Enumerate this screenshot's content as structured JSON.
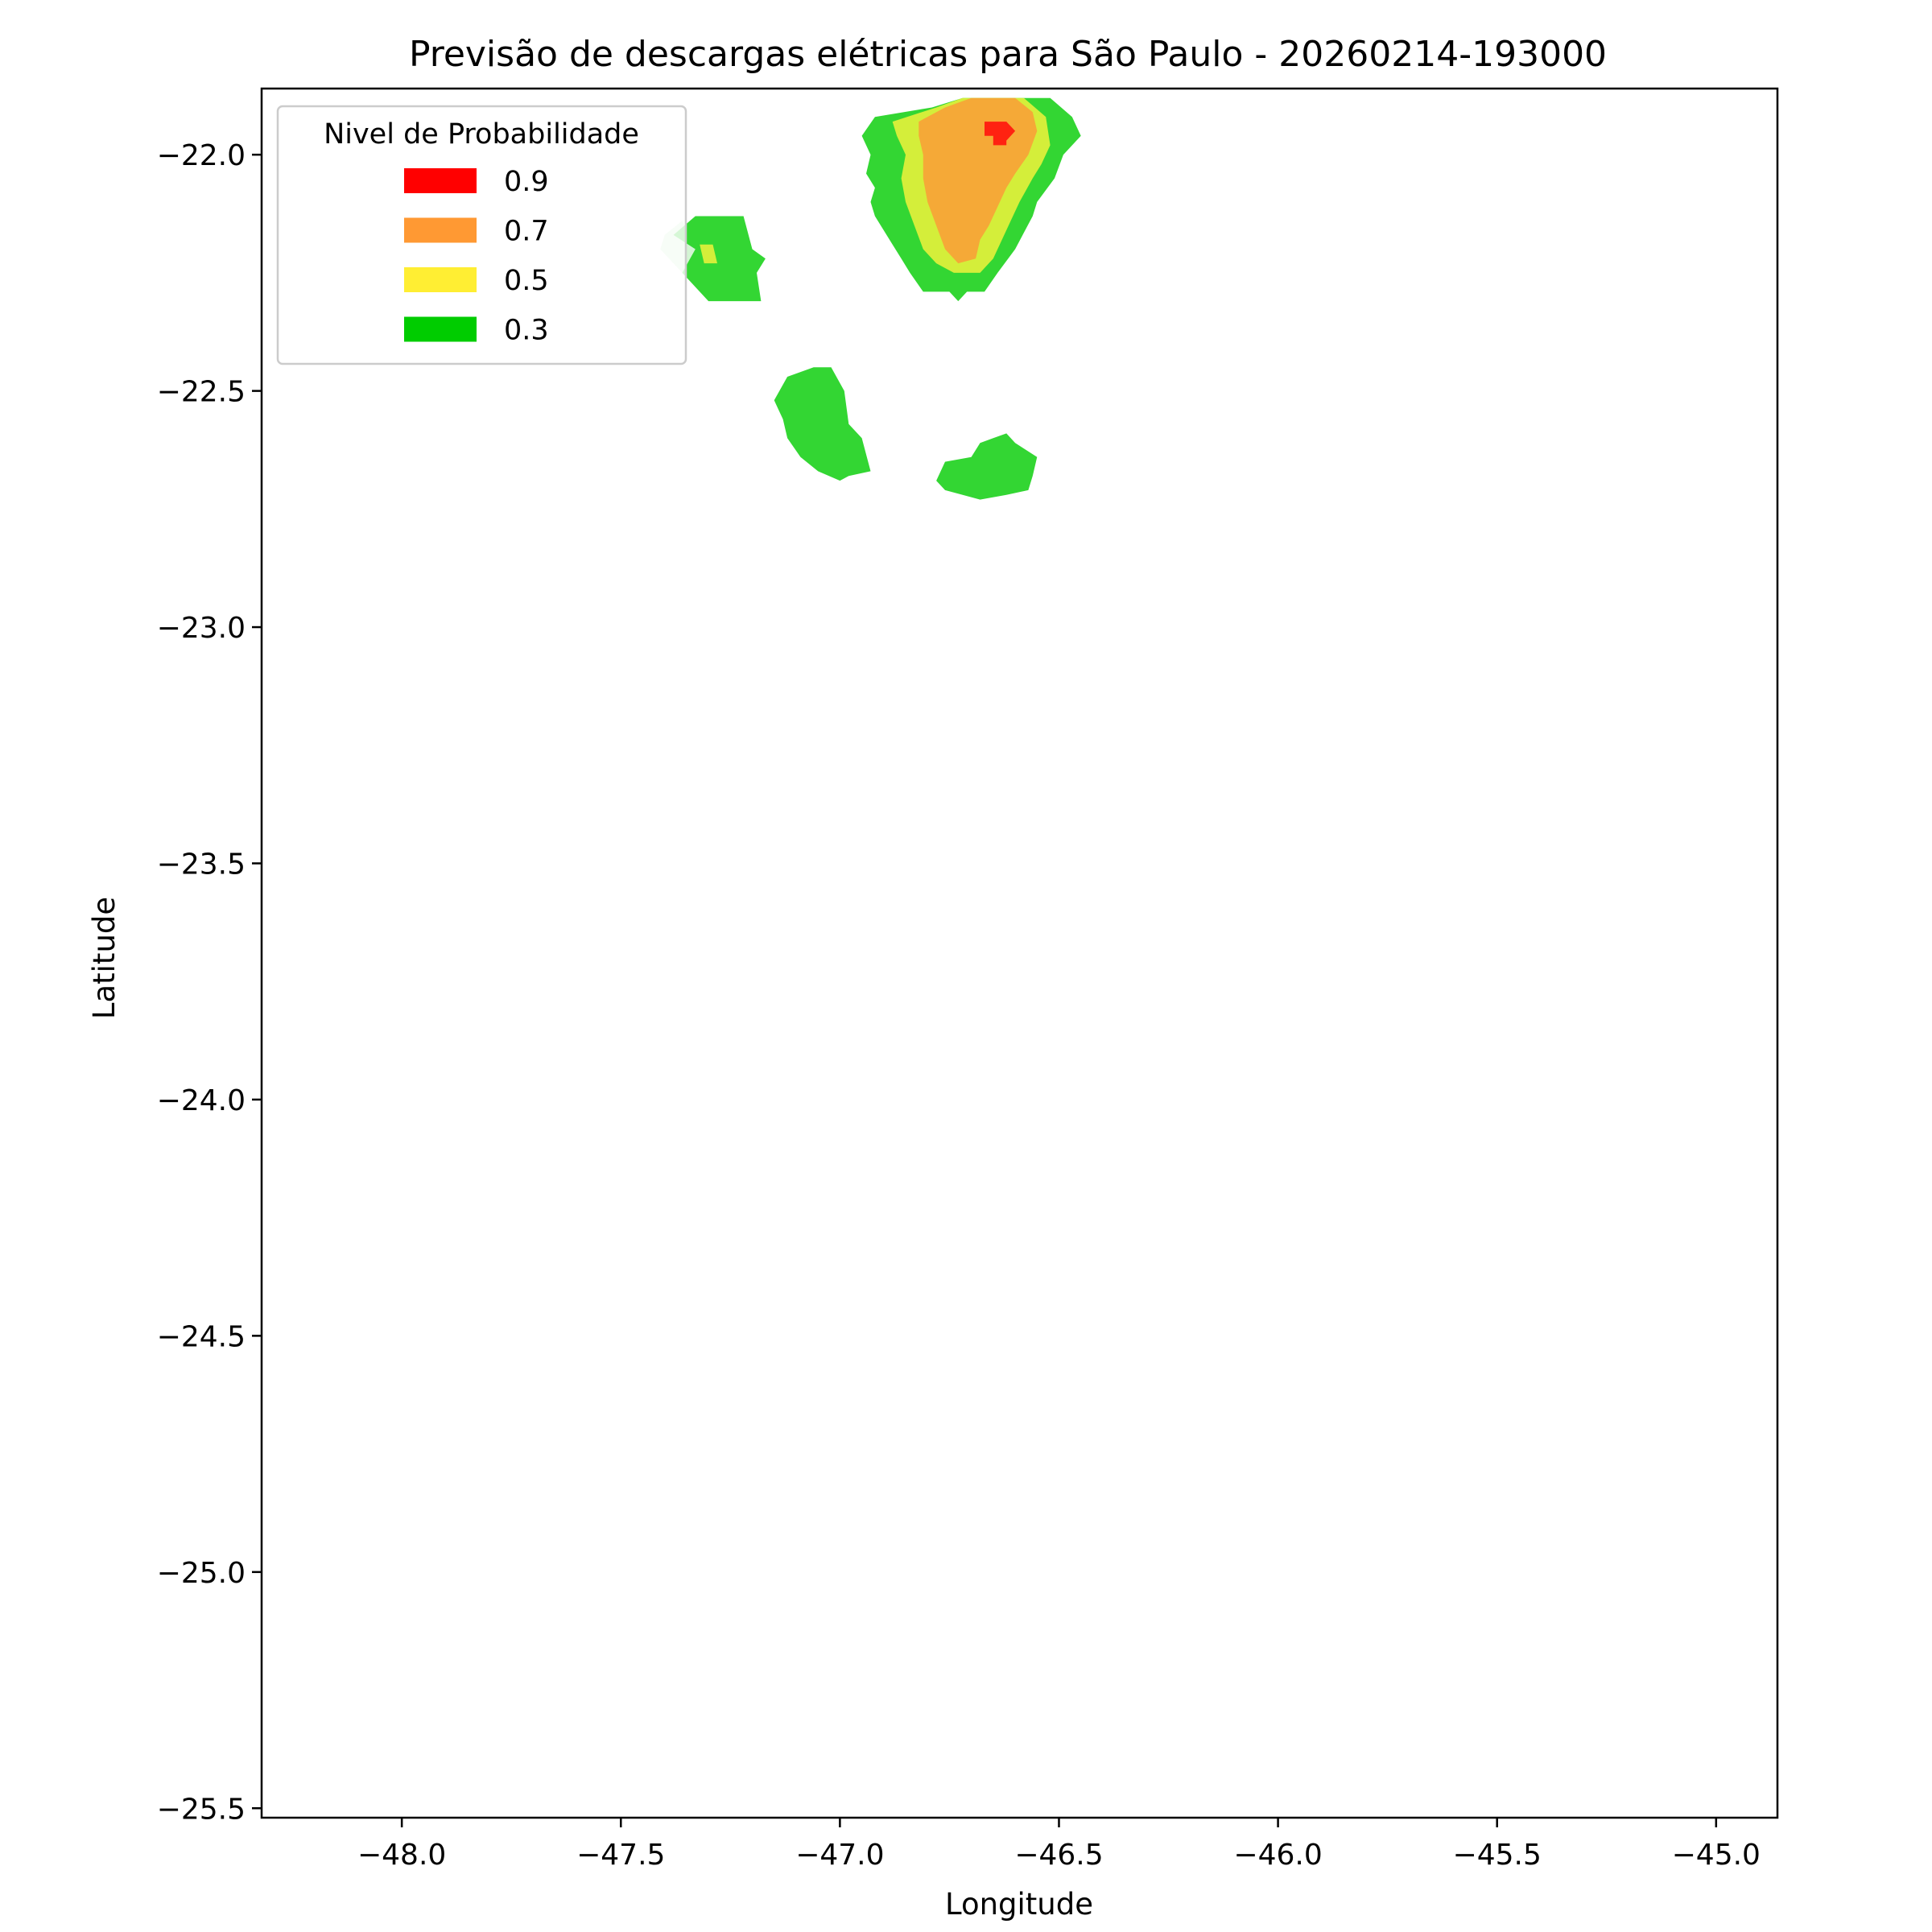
{
  "chart_data": {
    "type": "contourf",
    "title": "Previsão de descargas elétricas para São Paulo - 20260214-193000",
    "xlabel": "Longitude",
    "ylabel": "Latitude",
    "xlim": [
      -48.32,
      -44.86
    ],
    "ylim": [
      -25.52,
      -21.86
    ],
    "x_ticks": [
      {
        "value": -48.0,
        "label": "−48.0"
      },
      {
        "value": -47.5,
        "label": "−47.5"
      },
      {
        "value": -47.0,
        "label": "−47.0"
      },
      {
        "value": -46.5,
        "label": "−46.5"
      },
      {
        "value": -46.0,
        "label": "−46.0"
      },
      {
        "value": -45.5,
        "label": "−45.5"
      },
      {
        "value": -45.0,
        "label": "−45.0"
      }
    ],
    "y_ticks": [
      {
        "value": -22.0,
        "label": "−22.0"
      },
      {
        "value": -22.5,
        "label": "−22.5"
      },
      {
        "value": -23.0,
        "label": "−23.0"
      },
      {
        "value": -23.5,
        "label": "−23.5"
      },
      {
        "value": -24.0,
        "label": "−24.0"
      },
      {
        "value": -24.5,
        "label": "−24.5"
      },
      {
        "value": -25.0,
        "label": "−25.0"
      },
      {
        "value": -25.5,
        "label": "−25.5"
      }
    ],
    "grid": false,
    "legend": {
      "title": "Nivel de Probabilidade",
      "placement": "top-left",
      "entries": [
        {
          "label": "0.9",
          "color": "#ff0000"
        },
        {
          "label": "0.7",
          "color": "#ff9933"
        },
        {
          "label": "0.5",
          "color": "#ffee33"
        },
        {
          "label": "0.3",
          "color": "#00cc00"
        }
      ]
    },
    "regions": [
      {
        "level": 0.2,
        "color": "#d4f4d4",
        "points": [
          [
            -47.4,
            -22.17
          ],
          [
            -47.36,
            -22.14
          ],
          [
            -47.33,
            -22.2
          ],
          [
            -47.36,
            -22.25
          ],
          [
            -47.41,
            -22.2
          ]
        ]
      },
      {
        "level": 0.3,
        "color": "#33d633",
        "points": [
          [
            -47.38,
            -22.17
          ],
          [
            -47.33,
            -22.13
          ],
          [
            -47.22,
            -22.13
          ],
          [
            -47.2,
            -22.2
          ],
          [
            -47.17,
            -22.22
          ],
          [
            -47.19,
            -22.25
          ],
          [
            -47.18,
            -22.31
          ],
          [
            -47.3,
            -22.31
          ],
          [
            -47.36,
            -22.25
          ],
          [
            -47.33,
            -22.2
          ]
        ]
      },
      {
        "level": 0.5,
        "color": "#d4ee3a",
        "points": [
          [
            -47.32,
            -22.19
          ],
          [
            -47.29,
            -22.19
          ],
          [
            -47.28,
            -22.23
          ],
          [
            -47.31,
            -22.23
          ]
        ]
      },
      {
        "level": 0.3,
        "color": "#33d633",
        "points": [
          [
            -46.92,
            -21.92
          ],
          [
            -46.79,
            -21.9
          ],
          [
            -46.72,
            -21.88
          ],
          [
            -46.52,
            -21.88
          ],
          [
            -46.47,
            -21.92
          ],
          [
            -46.45,
            -21.96
          ],
          [
            -46.49,
            -22.0
          ],
          [
            -46.51,
            -22.05
          ],
          [
            -46.55,
            -22.1
          ],
          [
            -46.56,
            -22.13
          ],
          [
            -46.6,
            -22.2
          ],
          [
            -46.64,
            -22.25
          ],
          [
            -46.67,
            -22.29
          ],
          [
            -46.71,
            -22.29
          ],
          [
            -46.73,
            -22.31
          ],
          [
            -46.75,
            -22.29
          ],
          [
            -46.81,
            -22.29
          ],
          [
            -46.84,
            -22.25
          ],
          [
            -46.86,
            -22.22
          ],
          [
            -46.88,
            -22.19
          ],
          [
            -46.9,
            -22.16
          ],
          [
            -46.92,
            -22.13
          ],
          [
            -46.93,
            -22.1
          ],
          [
            -46.92,
            -22.07
          ],
          [
            -46.94,
            -22.04
          ],
          [
            -46.93,
            -22.0
          ],
          [
            -46.95,
            -21.96
          ]
        ]
      },
      {
        "level": 0.5,
        "color": "#d4ee3a",
        "points": [
          [
            -46.88,
            -21.93
          ],
          [
            -46.78,
            -21.9
          ],
          [
            -46.72,
            -21.88
          ],
          [
            -46.58,
            -21.88
          ],
          [
            -46.53,
            -21.92
          ],
          [
            -46.52,
            -21.98
          ],
          [
            -46.54,
            -22.02
          ],
          [
            -46.56,
            -22.05
          ],
          [
            -46.59,
            -22.1
          ],
          [
            -46.61,
            -22.14
          ],
          [
            -46.63,
            -22.18
          ],
          [
            -46.65,
            -22.22
          ],
          [
            -46.68,
            -22.25
          ],
          [
            -46.74,
            -22.25
          ],
          [
            -46.78,
            -22.23
          ],
          [
            -46.81,
            -22.2
          ],
          [
            -46.83,
            -22.15
          ],
          [
            -46.85,
            -22.1
          ],
          [
            -46.86,
            -22.05
          ],
          [
            -46.85,
            -22.0
          ],
          [
            -46.87,
            -21.96
          ]
        ]
      },
      {
        "level": 0.7,
        "color": "#f5a937",
        "points": [
          [
            -46.82,
            -21.93
          ],
          [
            -46.76,
            -21.9
          ],
          [
            -46.7,
            -21.88
          ],
          [
            -46.6,
            -21.88
          ],
          [
            -46.56,
            -21.91
          ],
          [
            -46.55,
            -21.95
          ],
          [
            -46.57,
            -22.0
          ],
          [
            -46.6,
            -22.04
          ],
          [
            -46.62,
            -22.07
          ],
          [
            -46.64,
            -22.11
          ],
          [
            -46.66,
            -22.15
          ],
          [
            -46.68,
            -22.18
          ],
          [
            -46.69,
            -22.22
          ],
          [
            -46.73,
            -22.23
          ],
          [
            -46.76,
            -22.2
          ],
          [
            -46.78,
            -22.15
          ],
          [
            -46.8,
            -22.1
          ],
          [
            -46.81,
            -22.05
          ],
          [
            -46.81,
            -22.0
          ],
          [
            -46.82,
            -21.96
          ]
        ]
      },
      {
        "level": 0.9,
        "color": "#ff2211",
        "points": [
          [
            -46.67,
            -21.93
          ],
          [
            -46.62,
            -21.93
          ],
          [
            -46.6,
            -21.95
          ],
          [
            -46.62,
            -21.97
          ],
          [
            -46.62,
            -21.98
          ],
          [
            -46.65,
            -21.98
          ],
          [
            -46.65,
            -21.96
          ],
          [
            -46.67,
            -21.96
          ]
        ]
      },
      {
        "level": 0.3,
        "color": "#33d633",
        "points": [
          [
            -47.06,
            -22.45
          ],
          [
            -47.02,
            -22.45
          ],
          [
            -46.99,
            -22.5
          ],
          [
            -46.98,
            -22.57
          ],
          [
            -46.95,
            -22.6
          ],
          [
            -46.93,
            -22.67
          ],
          [
            -46.98,
            -22.68
          ],
          [
            -47.0,
            -22.69
          ],
          [
            -47.05,
            -22.67
          ],
          [
            -47.09,
            -22.64
          ],
          [
            -47.12,
            -22.6
          ],
          [
            -47.13,
            -22.56
          ],
          [
            -47.15,
            -22.52
          ],
          [
            -47.12,
            -22.47
          ]
        ]
      },
      {
        "level": 0.3,
        "color": "#33d633",
        "points": [
          [
            -46.62,
            -22.59
          ],
          [
            -46.6,
            -22.61
          ],
          [
            -46.55,
            -22.64
          ],
          [
            -46.56,
            -22.68
          ],
          [
            -46.57,
            -22.71
          ],
          [
            -46.62,
            -22.72
          ],
          [
            -46.68,
            -22.73
          ],
          [
            -46.72,
            -22.72
          ],
          [
            -46.76,
            -22.71
          ],
          [
            -46.78,
            -22.69
          ],
          [
            -46.76,
            -22.65
          ],
          [
            -46.7,
            -22.64
          ],
          [
            -46.68,
            -22.61
          ],
          [
            -46.65,
            -22.6
          ]
        ]
      }
    ]
  }
}
